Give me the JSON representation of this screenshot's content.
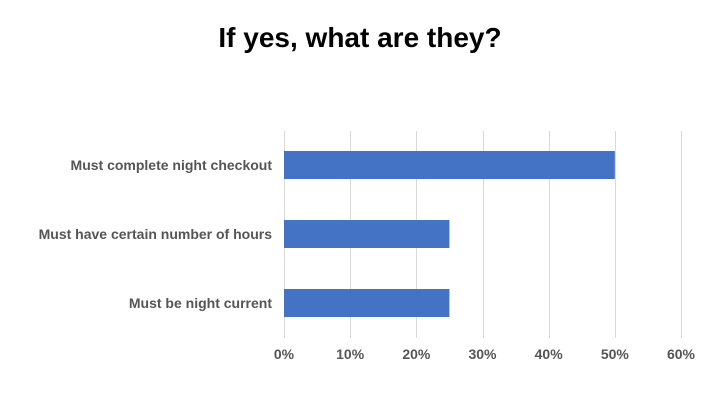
{
  "chart_data": {
    "type": "bar",
    "orientation": "horizontal",
    "title": "If yes, what are they?",
    "categories": [
      "Must complete night checkout",
      "Must have certain number of hours",
      "Must be night current"
    ],
    "values": [
      50,
      25,
      25
    ],
    "x_ticks": [
      "0%",
      "10%",
      "20%",
      "30%",
      "40%",
      "50%",
      "60%"
    ],
    "xlim": [
      0,
      60
    ],
    "xlabel": "",
    "ylabel": "",
    "grid": true,
    "legend": "none",
    "bar_color": "#4472C4",
    "grid_color": "#D9D9D9"
  }
}
